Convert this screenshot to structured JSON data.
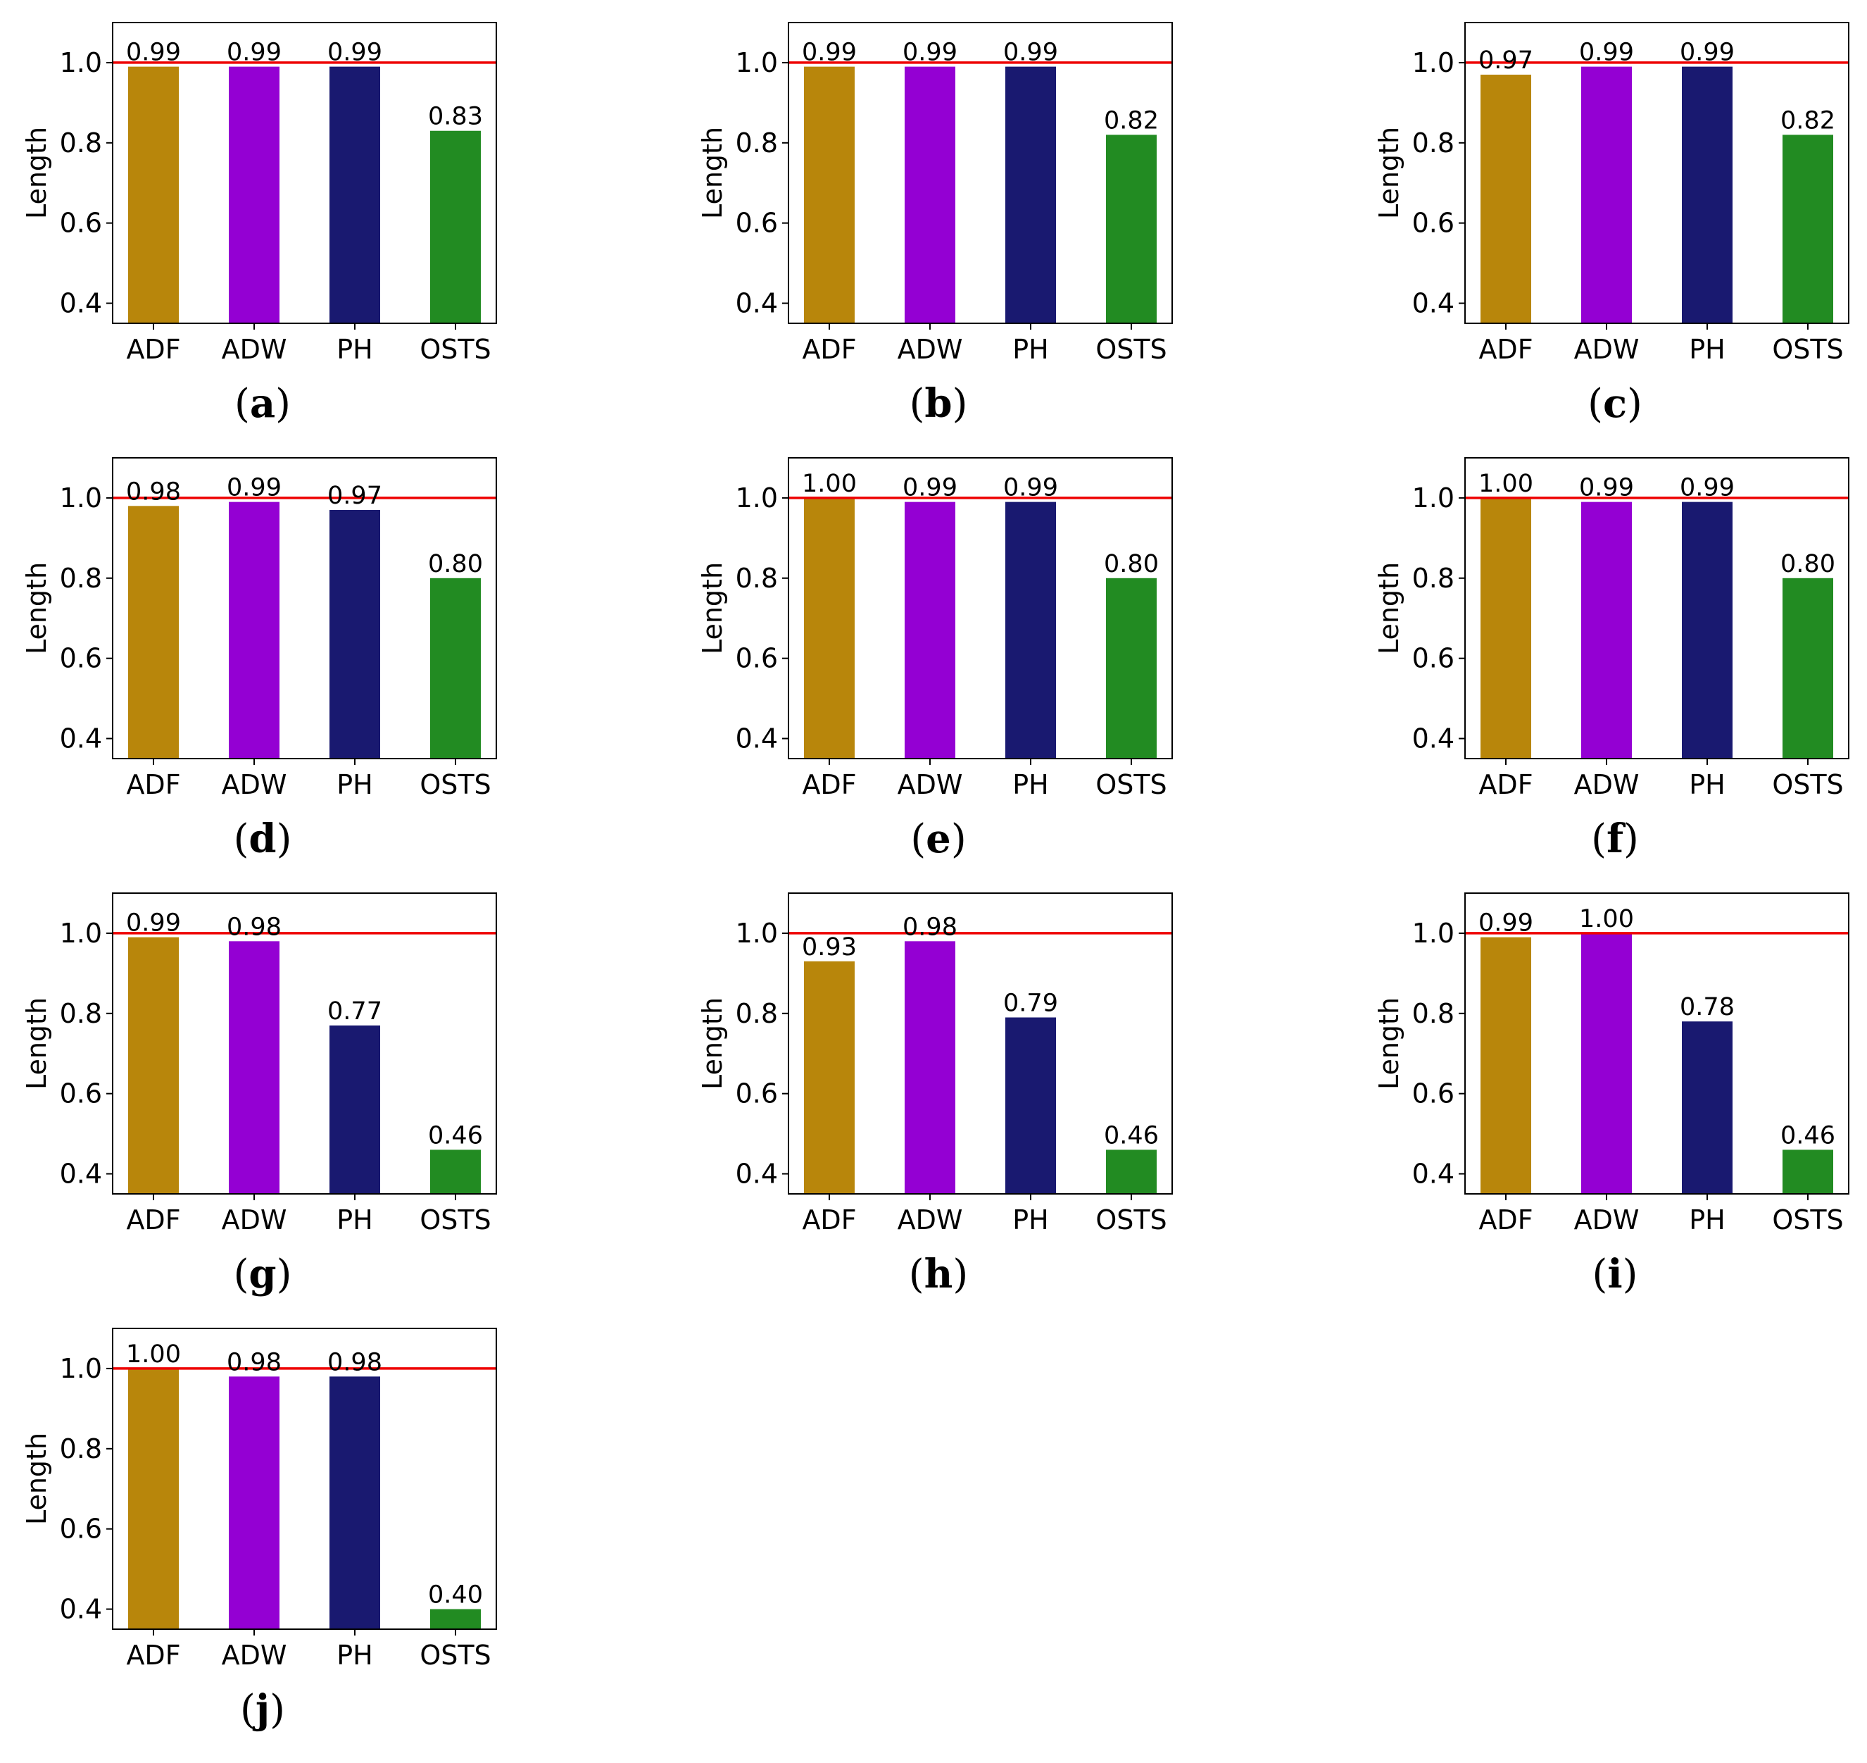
{
  "chart_data": [
    {
      "panel": "a",
      "type": "bar",
      "categories": [
        "ADF",
        "ADW",
        "PH",
        "OSTS"
      ],
      "values": [
        0.99,
        0.99,
        0.99,
        0.83
      ],
      "labels": [
        "0.99",
        "0.99",
        "0.99",
        "0.83"
      ],
      "ylabel": "Length",
      "yticks": [
        "0.4",
        "0.6",
        "0.8",
        "1.0"
      ],
      "ylim": [
        0.35,
        1.1
      ],
      "reference_line": 1.0
    },
    {
      "panel": "b",
      "type": "bar",
      "categories": [
        "ADF",
        "ADW",
        "PH",
        "OSTS"
      ],
      "values": [
        0.99,
        0.99,
        0.99,
        0.82
      ],
      "labels": [
        "0.99",
        "0.99",
        "0.99",
        "0.82"
      ],
      "ylabel": "Length",
      "yticks": [
        "0.4",
        "0.6",
        "0.8",
        "1.0"
      ],
      "ylim": [
        0.35,
        1.1
      ],
      "reference_line": 1.0
    },
    {
      "panel": "c",
      "type": "bar",
      "categories": [
        "ADF",
        "ADW",
        "PH",
        "OSTS"
      ],
      "values": [
        0.97,
        0.99,
        0.99,
        0.82
      ],
      "labels": [
        "0.97",
        "0.99",
        "0.99",
        "0.82"
      ],
      "ylabel": "Length",
      "yticks": [
        "0.4",
        "0.6",
        "0.8",
        "1.0"
      ],
      "ylim": [
        0.35,
        1.1
      ],
      "reference_line": 1.0
    },
    {
      "panel": "d",
      "type": "bar",
      "categories": [
        "ADF",
        "ADW",
        "PH",
        "OSTS"
      ],
      "values": [
        0.98,
        0.99,
        0.97,
        0.8
      ],
      "labels": [
        "0.98",
        "0.99",
        "0.97",
        "0.80"
      ],
      "ylabel": "Length",
      "yticks": [
        "0.4",
        "0.6",
        "0.8",
        "1.0"
      ],
      "ylim": [
        0.35,
        1.1
      ],
      "reference_line": 1.0
    },
    {
      "panel": "e",
      "type": "bar",
      "categories": [
        "ADF",
        "ADW",
        "PH",
        "OSTS"
      ],
      "values": [
        1.0,
        0.99,
        0.99,
        0.8
      ],
      "labels": [
        "1.00",
        "0.99",
        "0.99",
        "0.80"
      ],
      "ylabel": "Length",
      "yticks": [
        "0.4",
        "0.6",
        "0.8",
        "1.0"
      ],
      "ylim": [
        0.35,
        1.1
      ],
      "reference_line": 1.0
    },
    {
      "panel": "f",
      "type": "bar",
      "categories": [
        "ADF",
        "ADW",
        "PH",
        "OSTS"
      ],
      "values": [
        1.0,
        0.99,
        0.99,
        0.8
      ],
      "labels": [
        "1.00",
        "0.99",
        "0.99",
        "0.80"
      ],
      "ylabel": "Length",
      "yticks": [
        "0.4",
        "0.6",
        "0.8",
        "1.0"
      ],
      "ylim": [
        0.35,
        1.1
      ],
      "reference_line": 1.0
    },
    {
      "panel": "g",
      "type": "bar",
      "categories": [
        "ADF",
        "ADW",
        "PH",
        "OSTS"
      ],
      "values": [
        0.99,
        0.98,
        0.77,
        0.46
      ],
      "labels": [
        "0.99",
        "0.98",
        "0.77",
        "0.46"
      ],
      "ylabel": "Length",
      "yticks": [
        "0.4",
        "0.6",
        "0.8",
        "1.0"
      ],
      "ylim": [
        0.35,
        1.1
      ],
      "reference_line": 1.0
    },
    {
      "panel": "h",
      "type": "bar",
      "categories": [
        "ADF",
        "ADW",
        "PH",
        "OSTS"
      ],
      "values": [
        0.93,
        0.98,
        0.79,
        0.46
      ],
      "labels": [
        "0.93",
        "0.98",
        "0.79",
        "0.46"
      ],
      "ylabel": "Length",
      "yticks": [
        "0.4",
        "0.6",
        "0.8",
        "1.0"
      ],
      "ylim": [
        0.35,
        1.1
      ],
      "reference_line": 1.0
    },
    {
      "panel": "i",
      "type": "bar",
      "categories": [
        "ADF",
        "ADW",
        "PH",
        "OSTS"
      ],
      "values": [
        0.99,
        1.0,
        0.78,
        0.46
      ],
      "labels": [
        "0.99",
        "1.00",
        "0.78",
        "0.46"
      ],
      "ylabel": "Length",
      "yticks": [
        "0.4",
        "0.6",
        "0.8",
        "1.0"
      ],
      "ylim": [
        0.35,
        1.1
      ],
      "reference_line": 1.0
    },
    {
      "panel": "j",
      "type": "bar",
      "categories": [
        "ADF",
        "ADW",
        "PH",
        "OSTS"
      ],
      "values": [
        1.0,
        0.98,
        0.98,
        0.4
      ],
      "labels": [
        "1.00",
        "0.98",
        "0.98",
        "0.40"
      ],
      "ylabel": "Length",
      "yticks": [
        "0.4",
        "0.6",
        "0.8",
        "1.0"
      ],
      "ylim": [
        0.35,
        1.1
      ],
      "reference_line": 1.0
    }
  ],
  "colors": {
    "bars": [
      "#b8860b",
      "#9400d3",
      "#191970",
      "#228b22"
    ],
    "reference_line": "#ee0000",
    "axes": "#000000"
  }
}
